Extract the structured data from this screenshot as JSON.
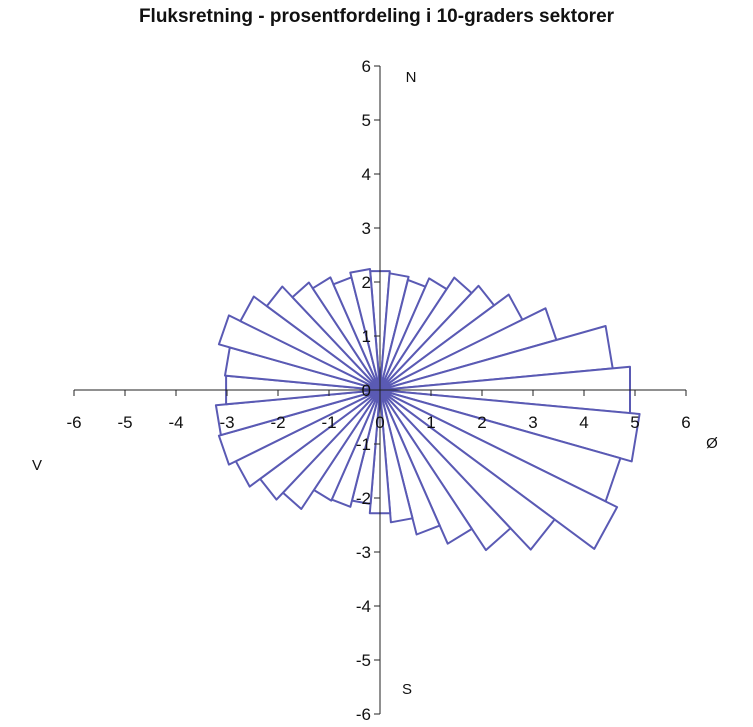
{
  "chart_data": {
    "type": "polar-rose",
    "title": "Fluksretning - prosentfordeling i 10-graders sektorer",
    "xlim": [
      -6,
      6
    ],
    "ylim": [
      -6,
      6
    ],
    "x_ticks": [
      "-6",
      "-5",
      "-4",
      "-3",
      "-2",
      "-1",
      "0",
      "1",
      "2",
      "3",
      "4",
      "5",
      "6"
    ],
    "y_ticks": [
      "6",
      "5",
      "4",
      "3",
      "2",
      "1",
      "0",
      "-1",
      "-2",
      "-3",
      "-4",
      "-5",
      "-6"
    ],
    "direction_labels": {
      "north": "N",
      "south": "S",
      "east": "Ø",
      "west": "V"
    },
    "sector_width_deg": 10,
    "sectors": [
      {
        "bearing": 0,
        "value": 2.21
      },
      {
        "bearing": 10,
        "value": 2.17
      },
      {
        "bearing": 20,
        "value": 2.11
      },
      {
        "bearing": 30,
        "value": 2.28
      },
      {
        "bearing": 40,
        "value": 2.54
      },
      {
        "bearing": 50,
        "value": 2.73
      },
      {
        "bearing": 60,
        "value": 3.08
      },
      {
        "bearing": 70,
        "value": 3.58
      },
      {
        "bearing": 80,
        "value": 4.58
      },
      {
        "bearing": 90,
        "value": 4.92
      },
      {
        "bearing": 100,
        "value": 5.11
      },
      {
        "bearing": 110,
        "value": 4.88
      },
      {
        "bearing": 120,
        "value": 5.13
      },
      {
        "bearing": 130,
        "value": 4.18
      },
      {
        "bearing": 140,
        "value": 3.62
      },
      {
        "bearing": 150,
        "value": 3.14
      },
      {
        "bearing": 160,
        "value": 2.77
      },
      {
        "bearing": 170,
        "value": 2.46
      },
      {
        "bearing": 180,
        "value": 2.29
      },
      {
        "bearing": 190,
        "value": 2.12
      },
      {
        "bearing": 200,
        "value": 2.24
      },
      {
        "bearing": 210,
        "value": 2.26
      },
      {
        "bearing": 220,
        "value": 2.69
      },
      {
        "bearing": 230,
        "value": 2.87
      },
      {
        "bearing": 240,
        "value": 3.12
      },
      {
        "bearing": 250,
        "value": 3.27
      },
      {
        "bearing": 260,
        "value": 3.23
      },
      {
        "bearing": 270,
        "value": 3.03
      },
      {
        "bearing": 280,
        "value": 3.05
      },
      {
        "bearing": 290,
        "value": 3.27
      },
      {
        "bearing": 300,
        "value": 3.02
      },
      {
        "bearing": 310,
        "value": 2.71
      },
      {
        "bearing": 320,
        "value": 2.43
      },
      {
        "bearing": 330,
        "value": 2.3
      },
      {
        "bearing": 340,
        "value": 2.16
      },
      {
        "bearing": 350,
        "value": 2.25
      }
    ],
    "colors": {
      "sector_stroke": "#5a5ab4",
      "sector_fill": "#ffffff",
      "axis": "#222222",
      "text": "#111111"
    },
    "grid": false,
    "legend": "none"
  }
}
